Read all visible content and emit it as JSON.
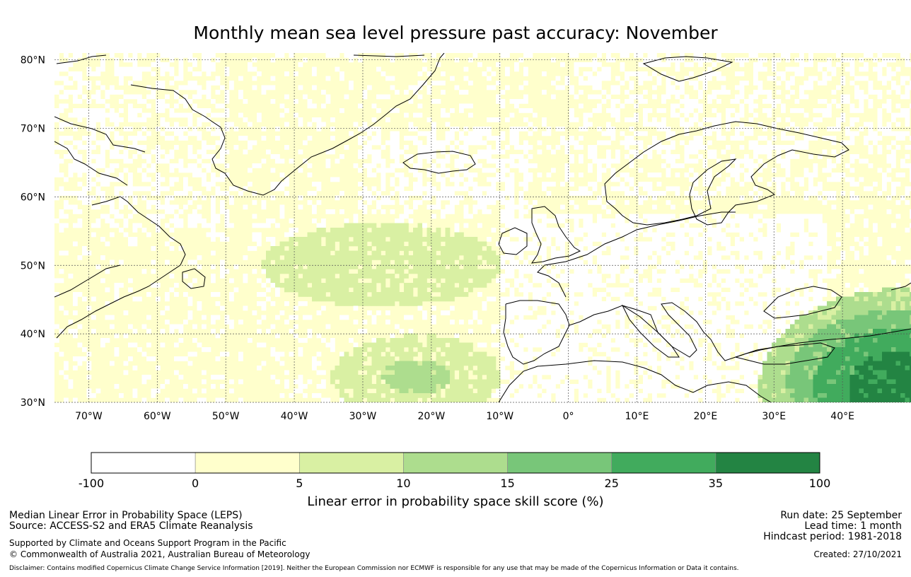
{
  "title": "Monthly mean sea level pressure past accuracy: November",
  "map": {
    "lat_labels": [
      "80°N",
      "70°N",
      "60°N",
      "50°N",
      "40°N",
      "30°N"
    ],
    "lon_labels": [
      "70°W",
      "60°W",
      "50°W",
      "40°W",
      "30°W",
      "20°W",
      "10°W",
      "0°",
      "10°E",
      "20°E",
      "30°E",
      "40°E"
    ],
    "extent": {
      "lon_min": -75,
      "lon_max": 50,
      "lat_min": 30,
      "lat_max": 81
    }
  },
  "colorbar": {
    "ticks": [
      "-100",
      "0",
      "5",
      "10",
      "15",
      "25",
      "35",
      "100"
    ],
    "colors": [
      "#ffffff",
      "#ffffcc",
      "#d9f0a3",
      "#addd8e",
      "#78c679",
      "#41ab5d",
      "#238443"
    ],
    "title": "Linear error in probability space skill score (%)"
  },
  "footer": {
    "left_line1": "Median Linear Error in Probability Space (LEPS)",
    "left_line2": "Source: ACCESS-S2 and ERA5 Climate Reanalysis",
    "left_line3": "Supported by Climate and Oceans Support Program in the Pacific",
    "left_line4": "© Commonwealth of Australia 2021, Australian Bureau of Meteorology",
    "right_line1": "Run date: 25 September",
    "right_line2": "Lead time: 1 month",
    "right_line3": "Hindcast period: 1981-2018",
    "right_line4": "Created: 27/10/2021",
    "disclaimer": "Disclaimer: Contains modified Copernicus Climate Change Service Information [2019]. Neither the European Commission nor ECMWF is responsible for any use that may be made of the Copernicus Information or Data it contains."
  }
}
